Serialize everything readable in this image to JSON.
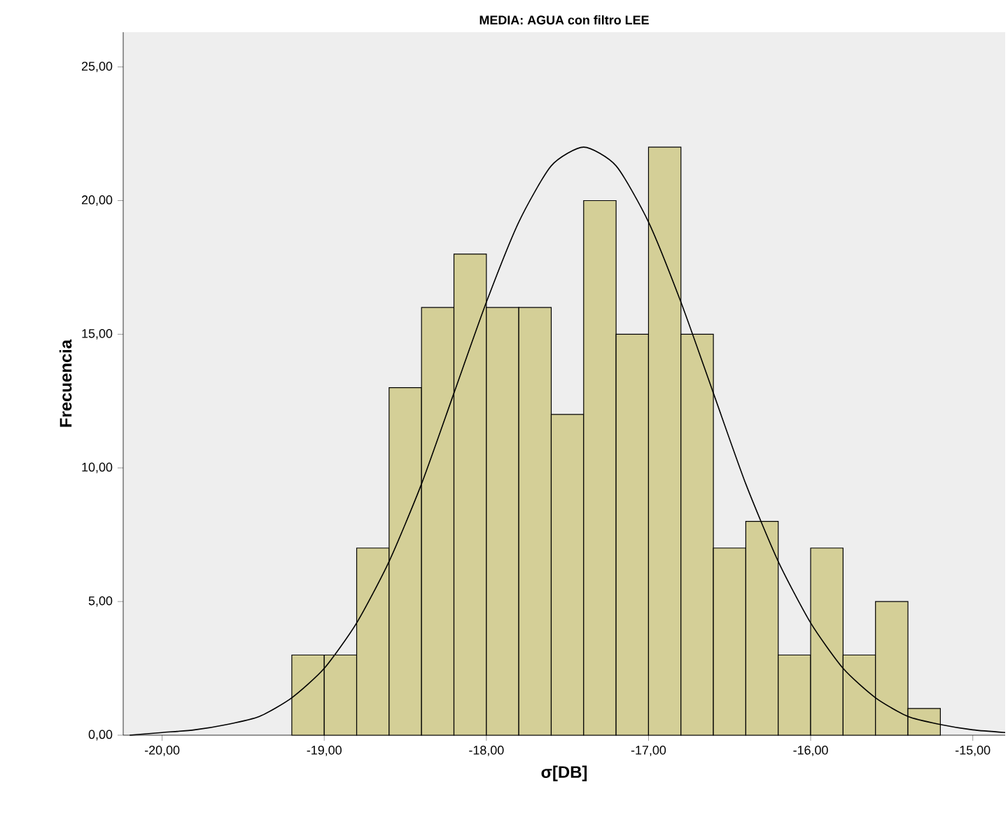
{
  "chart_data": {
    "type": "histogram",
    "title": "MEDIA: AGUA con filtro LEE",
    "xlabel": "σ[DB]",
    "ylabel": "Frecuencia",
    "bins": [
      -19.2,
      -19.0,
      -18.8,
      -18.6,
      -18.4,
      -18.2,
      -18.0,
      -17.8,
      -17.6,
      -17.4,
      -17.2,
      -17.0,
      -16.8,
      -16.6,
      -16.4,
      -16.2,
      -16.0,
      -15.8,
      -15.6,
      -15.4,
      -15.2
    ],
    "values": [
      3,
      3,
      7,
      13,
      16,
      18,
      16,
      16,
      12,
      20,
      15,
      22,
      15,
      7,
      8,
      3,
      7,
      3,
      5,
      1
    ],
    "color": "#d4cf97",
    "series": [
      {
        "type": "line",
        "color": "#000000",
        "x": [
          -20.2,
          -20.0,
          -19.8,
          -19.6,
          -19.4,
          -19.2,
          -19.0,
          -18.8,
          -18.6,
          -18.4,
          -18.2,
          -18.0,
          -17.8,
          -17.6,
          -17.4,
          -17.2,
          -17.0,
          -16.8,
          -16.6,
          -16.4,
          -16.2,
          -16.0,
          -15.8,
          -15.6,
          -15.4,
          -15.2,
          -15.0,
          -14.8
        ],
        "values": [
          0.0,
          0.1,
          0.2,
          0.4,
          0.7,
          1.4,
          2.5,
          4.2,
          6.5,
          9.4,
          12.8,
          16.2,
          19.2,
          21.3,
          22.0,
          21.3,
          19.2,
          16.2,
          12.8,
          9.4,
          6.5,
          4.2,
          2.5,
          1.4,
          0.7,
          0.4,
          0.2,
          0.1
        ]
      }
    ],
    "xlim": [
      -20.24,
      -14.8
    ],
    "ylim": [
      0,
      26.3
    ],
    "xticks": [
      {
        "value": -20,
        "label": "-20,00"
      },
      {
        "value": -19,
        "label": "-19,00"
      },
      {
        "value": -18,
        "label": "-18,00"
      },
      {
        "value": -17,
        "label": "-17,00"
      },
      {
        "value": -16,
        "label": "-16,00"
      },
      {
        "value": -15,
        "label": "-15,00"
      }
    ],
    "yticks": [
      {
        "value": 0,
        "label": "0,00"
      },
      {
        "value": 5,
        "label": "5,00"
      },
      {
        "value": 10,
        "label": "10,00"
      },
      {
        "value": 15,
        "label": "15,00"
      },
      {
        "value": 20,
        "label": "20,00"
      },
      {
        "value": 25,
        "label": "25,00"
      }
    ],
    "grid": false
  }
}
